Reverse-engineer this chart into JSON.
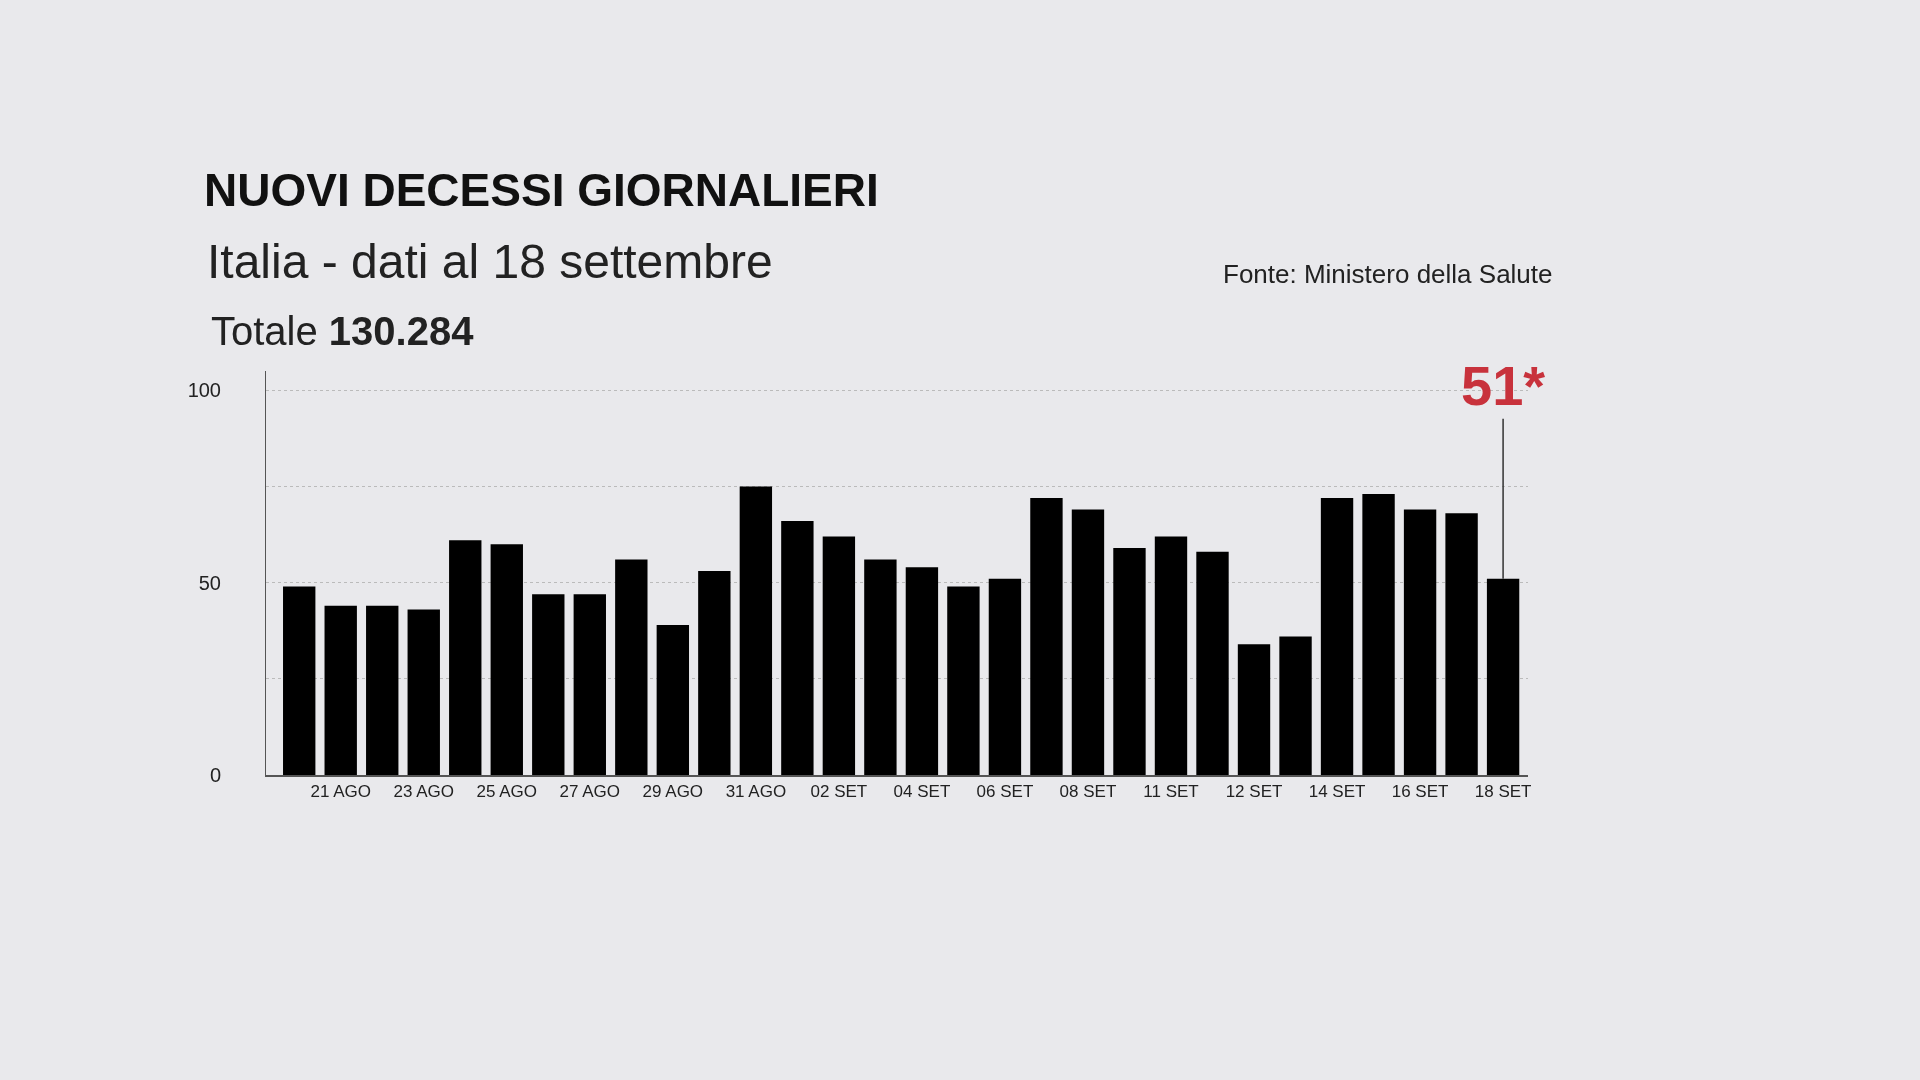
{
  "chart_data": {
    "type": "bar",
    "title": "NUOVI DECESSI GIORNALIERI",
    "subtitle": "Italia - dati al 18 settembre",
    "categories": [
      null,
      "21 AGO",
      null,
      "23 AGO",
      null,
      "25 AGO",
      null,
      "27 AGO",
      null,
      "29 AGO",
      null,
      "31 AGO",
      null,
      "02 SET",
      null,
      "04 SET",
      null,
      "06 SET",
      null,
      "08 SET",
      null,
      "11 SET",
      null,
      "12 SET",
      null,
      "14 SET",
      null,
      "16 SET",
      null,
      "18 SET"
    ],
    "values": [
      49,
      44,
      44,
      43,
      61,
      60,
      47,
      47,
      56,
      39,
      53,
      75,
      66,
      62,
      56,
      54,
      49,
      51,
      72,
      69,
      59,
      62,
      58,
      34,
      36,
      72,
      73,
      69,
      68,
      51
    ],
    "color": "#000000",
    "ylim": [
      0,
      105
    ],
    "yticks": [
      0,
      {
        "value": 25,
        "label": null
      },
      50,
      {
        "value": 75,
        "label": null
      },
      100
    ],
    "grid": "y",
    "annotations": [
      {
        "text": "Totale 130.284"
      },
      {
        "text": "Fonte: Ministero della Salute"
      },
      {
        "text": "51*",
        "x": "18 SET",
        "y": 51
      }
    ]
  }
}
